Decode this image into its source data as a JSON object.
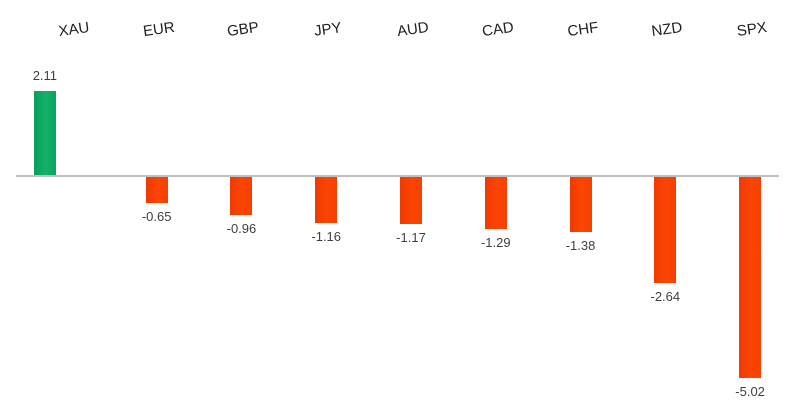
{
  "chart_data": {
    "type": "bar",
    "title": "",
    "xlabel": "",
    "ylabel": "",
    "categories": [
      "XAU",
      "EUR",
      "GBP",
      "JPY",
      "AUD",
      "CAD",
      "CHF",
      "NZD",
      "SPX"
    ],
    "values": [
      2.11,
      -0.65,
      -0.96,
      -1.16,
      -1.17,
      -1.29,
      -1.38,
      -2.64,
      -5.02
    ],
    "value_labels": [
      "2.11",
      "-0.65",
      "-0.96",
      "-1.16",
      "-1.17",
      "-1.29",
      "-1.38",
      "-2.64",
      "-5.02"
    ],
    "series": [
      {
        "name": "positive",
        "color": "#0CA763",
        "values": [
          2.11,
          null,
          null,
          null,
          null,
          null,
          null,
          null,
          null
        ]
      },
      {
        "name": "negative",
        "color": "#F94301",
        "values": [
          null,
          -0.65,
          -0.96,
          -1.16,
          -1.17,
          -1.29,
          -1.38,
          -2.64,
          -5.02
        ]
      }
    ],
    "ylim": [
      -5.5,
      2.5
    ],
    "grid": false,
    "legend": false,
    "positive_color": "#0CA763",
    "negative_color": "#F94301",
    "axis_line_color": "#BFBFBF",
    "category_label_color": "#1F1F1F",
    "value_label_color": "#3F3F3F"
  }
}
